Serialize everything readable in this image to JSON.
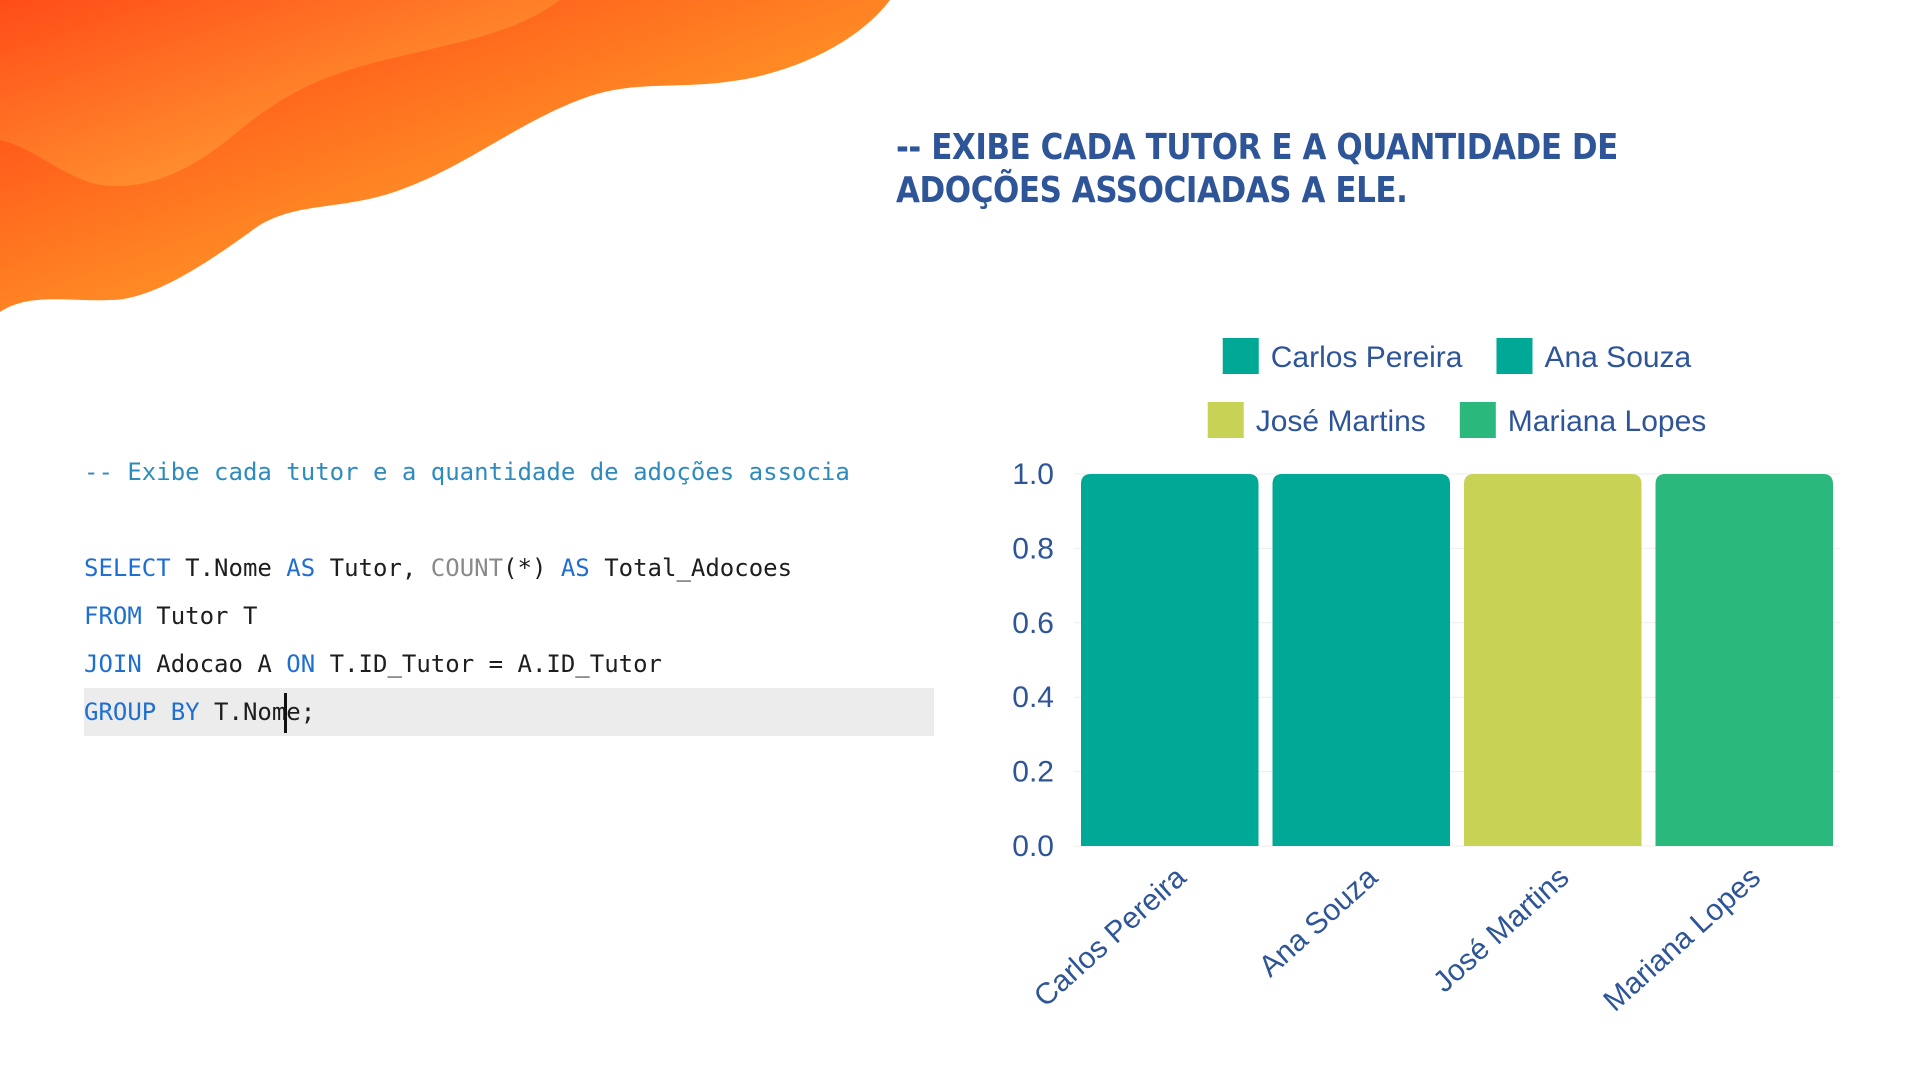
{
  "header": {
    "heading": "-- EXIBE CADA TUTOR E A QUANTIDADE DE ADOÇÕES ASSOCIADAS A ELE."
  },
  "code": {
    "lines": [
      {
        "segments": [
          {
            "t": "-- Exibe cada tutor e a quantidade de adoções associa",
            "c": "cm"
          }
        ]
      },
      {
        "segments": []
      },
      {
        "segments": [
          {
            "t": "SELECT",
            "c": "kw"
          },
          {
            "t": " T.Nome ",
            "c": ""
          },
          {
            "t": "AS",
            "c": "kw"
          },
          {
            "t": " Tutor, ",
            "c": ""
          },
          {
            "t": "COUNT",
            "c": "fn"
          },
          {
            "t": "(*) ",
            "c": ""
          },
          {
            "t": "AS",
            "c": "kw"
          },
          {
            "t": " Total_Adocoes",
            "c": ""
          }
        ]
      },
      {
        "segments": [
          {
            "t": "FROM",
            "c": "kw"
          },
          {
            "t": " Tutor T",
            "c": ""
          }
        ]
      },
      {
        "segments": [
          {
            "t": "JOIN",
            "c": "kw"
          },
          {
            "t": " Adocao A ",
            "c": ""
          },
          {
            "t": "ON",
            "c": "kw"
          },
          {
            "t": " T.ID_Tutor = A.ID_Tutor",
            "c": ""
          }
        ]
      },
      {
        "segments": [
          {
            "t": "GROUP BY",
            "c": "kw"
          },
          {
            "t": " T.Nom",
            "c": ""
          },
          {
            "t": "|",
            "c": "cursor"
          },
          {
            "t": "e;",
            "c": ""
          }
        ],
        "highlighted": true
      }
    ]
  },
  "chart_data": {
    "type": "bar",
    "categories": [
      "Carlos Pereira",
      "Ana Souza",
      "José Martins",
      "Mariana Lopes"
    ],
    "values": [
      1,
      1,
      1,
      1
    ],
    "colors": [
      "#00a896",
      "#00a896",
      "#c8d255",
      "#2bb87c"
    ],
    "legend": [
      "Carlos Pereira",
      "Ana Souza",
      "José Martins",
      "Mariana Lopes"
    ],
    "legend_position": "top",
    "ylim": [
      0,
      1.0
    ],
    "yticks": [
      "0.0",
      "0.2",
      "0.4",
      "0.6",
      "0.8",
      "1.0"
    ],
    "grid": true,
    "title": "",
    "xlabel": "",
    "ylabel": ""
  },
  "colors": {
    "heading": "#2e5597",
    "axis_text": "#2e5597",
    "blob_dark": "#ff3b12",
    "blob_light": "#ffcf4a"
  }
}
